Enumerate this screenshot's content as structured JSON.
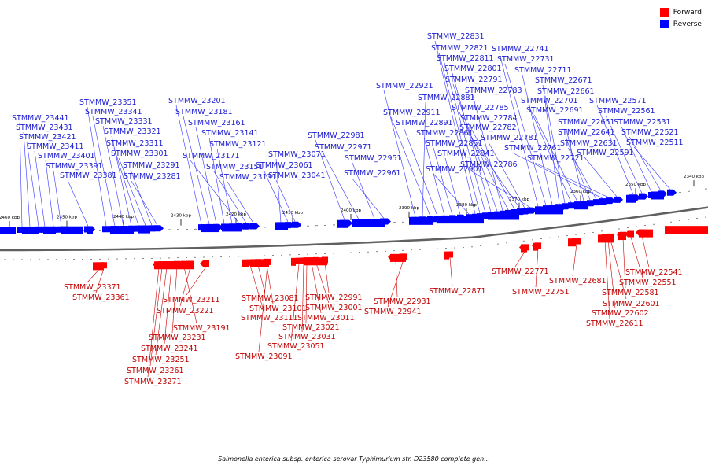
{
  "caption": "Salmonella enterica subsp. enterica serovar Typhimurium str. D23580 complete gen...",
  "legend": [
    {
      "label": "Forward",
      "color": "#ff0000"
    },
    {
      "label": "Reverse",
      "color": "#0000ff"
    }
  ],
  "colors": {
    "forward": "#ff0000",
    "forward_line": "#cc0000",
    "reverse": "#0000ff",
    "reverse_line": "#3333ff",
    "backbone": "#808080"
  },
  "scale_ticks": [
    "2460 kbp",
    "2450 kbp",
    "2440 kbp",
    "2430 kbp",
    "2420 kbp",
    "2410 kbp",
    "2400 kbp",
    "2390 kbp",
    "2380 kbp",
    "2370 kbp",
    "2360 kbp",
    "2350 kbp",
    "2340 kbp"
  ],
  "reverse_genes": [
    "STMMW_23441",
    "STMMW_23431",
    "STMMW_23421",
    "STMMW_23411",
    "STMMW_23401",
    "STMMW_23391",
    "STMMW_23381",
    "STMMW_23351",
    "STMMW_23341",
    "STMMW_23331",
    "STMMW_23321",
    "STMMW_23311",
    "STMMW_23301",
    "STMMW_23291",
    "STMMW_23281",
    "STMMW_23201",
    "STMMW_23181",
    "STMMW_23161",
    "STMMW_23141",
    "STMMW_23121",
    "STMMW_23171",
    "STMMW_23151",
    "STMMW_23131",
    "STMMW_23071",
    "STMMW_23061",
    "STMMW_23041",
    "STMMW_22981",
    "STMMW_22971",
    "STMMW_22951",
    "STMMW_22961",
    "STMMW_22921",
    "STMMW_22881",
    "STMMW_22911",
    "STMMW_22891",
    "STMMW_22861",
    "STMMW_22851",
    "STMMW_22841",
    "STMMW_22901",
    "STMMW_22831",
    "STMMW_22821",
    "STMMW_22811",
    "STMMW_22801",
    "STMMW_22791",
    "STMMW_22783",
    "STMMW_22785",
    "STMMW_22784",
    "STMMW_22782",
    "STMMW_22781",
    "STMMW_22786",
    "STMMW_22741",
    "STMMW_22731",
    "STMMW_22711",
    "STMMW_22671",
    "STMMW_22661",
    "STMMW_22701",
    "STMMW_22691",
    "STMMW_22651",
    "STMMW_22641",
    "STMMW_22631",
    "STMMW_22761",
    "STMMW_22721",
    "STMMW_22591",
    "STMMW_22571",
    "STMMW_22561",
    "STMMW_22531",
    "STMMW_22521",
    "STMMW_22511"
  ],
  "forward_genes": [
    "STMMW_23371",
    "STMMW_23361",
    "STMMW_23211",
    "STMMW_23221",
    "STMMW_23191",
    "STMMW_23231",
    "STMMW_23241",
    "STMMW_23251",
    "STMMW_23261",
    "STMMW_23271",
    "STMMW_23081",
    "STMMW_23101",
    "STMMW_23111",
    "STMMW_23091",
    "STMMW_22991",
    "STMMW_23001",
    "STMMW_23011",
    "STMMW_23021",
    "STMMW_23031",
    "STMMW_23051",
    "STMMW_22931",
    "STMMW_22941",
    "STMMW_22871",
    "STMMW_22771",
    "STMMW_22751",
    "STMMW_22681",
    "STMMW_22541",
    "STMMW_22551",
    "STMMW_22581",
    "STMMW_22601",
    "STMMW_22602",
    "STMMW_22611"
  ]
}
